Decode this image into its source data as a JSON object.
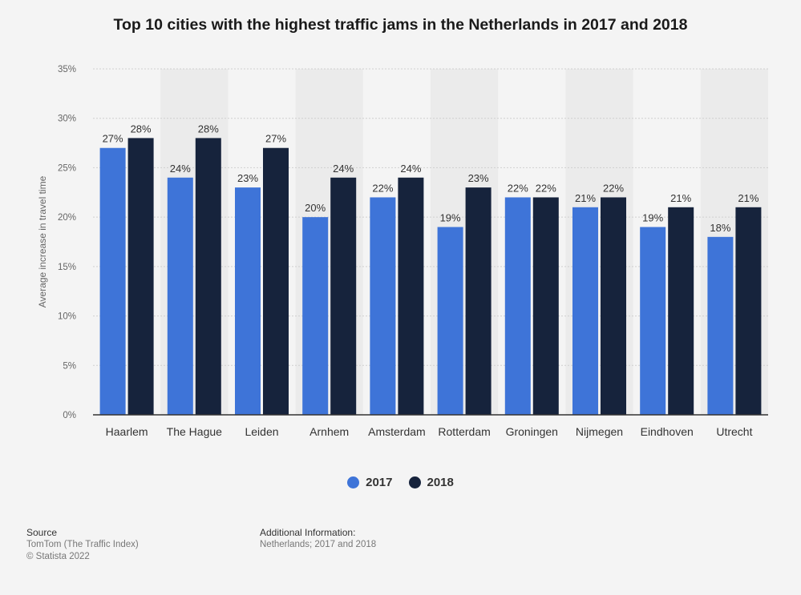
{
  "title": "Top 10 cities with the highest traffic jams in the Netherlands in 2017 and 2018",
  "colors": {
    "s2017": "#3e74d8",
    "s2018": "#16233c",
    "band": "#ebebeb",
    "grid": "#cfcfcf"
  },
  "legend": [
    {
      "label": "2017"
    },
    {
      "label": "2018"
    }
  ],
  "footer": {
    "source_heading": "Source",
    "source_line1": "TomTom (The Traffic Index)",
    "source_line2": "© Statista 2022",
    "info_heading": "Additional Information:",
    "info_line1": "Netherlands; 2017 and 2018"
  },
  "chart_data": {
    "type": "bar",
    "title": "Top 10 cities with the highest traffic jams in the Netherlands in 2017 and 2018",
    "xlabel": "",
    "ylabel": "Average increase in travel time",
    "ylim": [
      0,
      35
    ],
    "yticks": [
      "0%",
      "5%",
      "10%",
      "15%",
      "20%",
      "25%",
      "30%",
      "35%"
    ],
    "ytick_values": [
      0,
      5,
      10,
      15,
      20,
      25,
      30,
      35
    ],
    "grid": true,
    "legend_position": "bottom",
    "categories": [
      "Haarlem",
      "The Hague",
      "Leiden",
      "Arnhem",
      "Amsterdam",
      "Rotterdam",
      "Groningen",
      "Nijmegen",
      "Eindhoven",
      "Utrecht"
    ],
    "series": [
      {
        "name": "2017",
        "values": [
          27,
          24,
          23,
          20,
          22,
          19,
          22,
          21,
          19,
          18
        ],
        "labels": [
          "27%",
          "24%",
          "23%",
          "20%",
          "22%",
          "19%",
          "22%",
          "21%",
          "19%",
          "18%"
        ]
      },
      {
        "name": "2018",
        "values": [
          28,
          28,
          27,
          24,
          24,
          23,
          22,
          22,
          21,
          21
        ],
        "labels": [
          "28%",
          "28%",
          "27%",
          "24%",
          "24%",
          "23%",
          "22%",
          "22%",
          "21%",
          "21%"
        ]
      }
    ]
  }
}
